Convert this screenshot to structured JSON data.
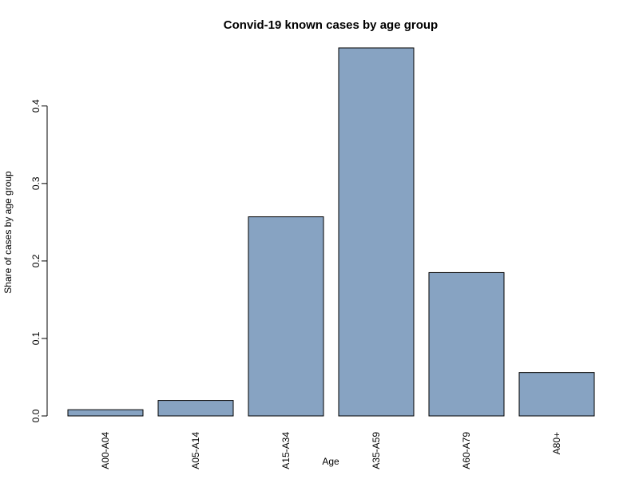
{
  "chart_data": {
    "type": "bar",
    "title": "Convid-19 known cases by age group",
    "xlabel": "Age",
    "ylabel": "Share of cases by age group",
    "categories": [
      "A00-A04",
      "A05-A14",
      "A15-A34",
      "A35-A59",
      "A60-A79",
      "A80+"
    ],
    "values": [
      0.008,
      0.02,
      0.257,
      0.475,
      0.185,
      0.056
    ],
    "yticks": [
      0.0,
      0.1,
      0.2,
      0.3,
      0.4
    ],
    "ytick_labels": [
      "0.0",
      "0.1",
      "0.2",
      "0.3",
      "0.4"
    ],
    "ylim": [
      0,
      0.475
    ],
    "bar_color": "#87a3c2",
    "grid": false,
    "legend": "none"
  }
}
